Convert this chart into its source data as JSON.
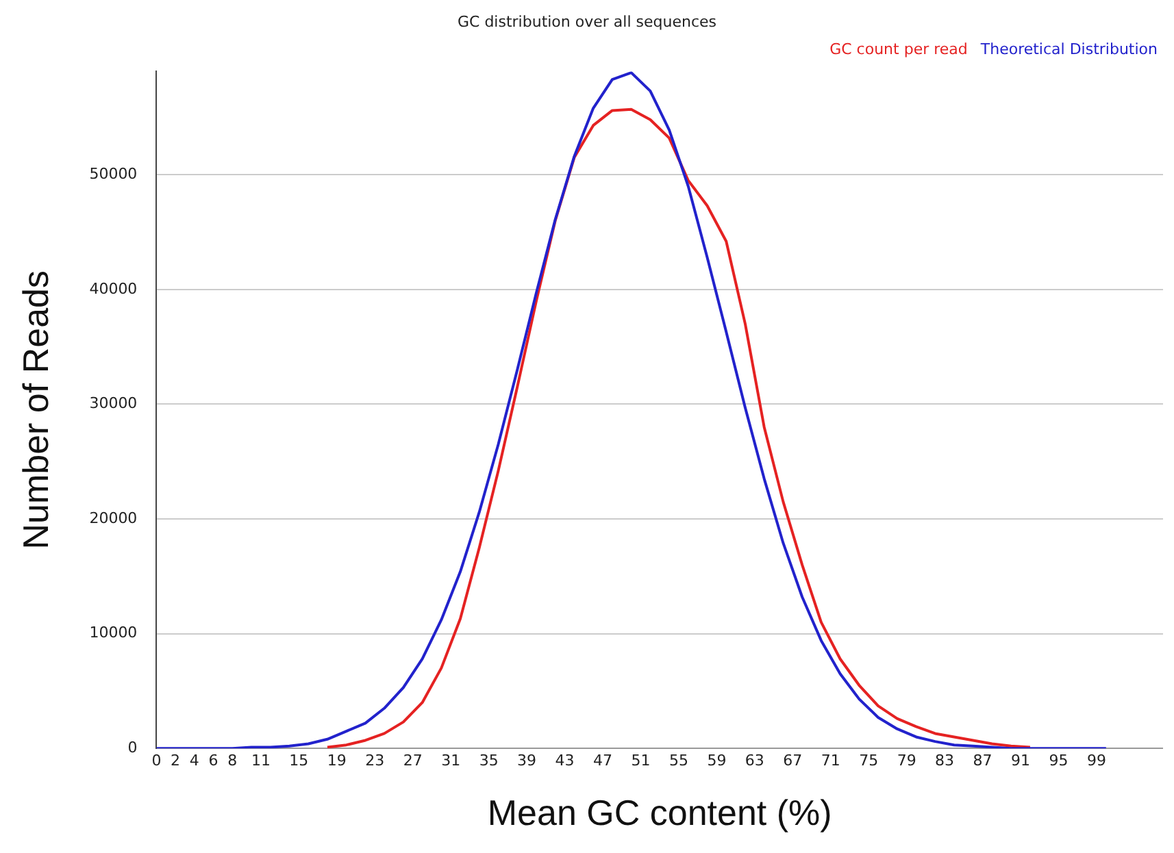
{
  "chart_data": {
    "type": "line",
    "title": "GC distribution over all sequences",
    "xlabel": "Mean GC content (%)",
    "ylabel": "Number of Reads",
    "x": [
      0,
      2,
      4,
      6,
      8,
      10,
      12,
      14,
      16,
      18,
      20,
      22,
      24,
      26,
      28,
      30,
      32,
      34,
      36,
      38,
      40,
      42,
      44,
      46,
      48,
      50,
      52,
      54,
      56,
      58,
      60,
      62,
      64,
      66,
      68,
      70,
      72,
      74,
      76,
      78,
      80,
      82,
      84,
      86,
      88,
      90,
      92,
      94,
      96,
      98,
      100
    ],
    "series": [
      {
        "name": "GC count per read",
        "color": "#e52222",
        "values": [
          null,
          null,
          null,
          null,
          null,
          null,
          null,
          null,
          null,
          100,
          300,
          700,
          1300,
          2300,
          4000,
          7000,
          11300,
          17500,
          24200,
          31500,
          39000,
          46000,
          51500,
          54300,
          55600,
          55700,
          54800,
          53200,
          49500,
          47300,
          44200,
          37000,
          28000,
          21500,
          16000,
          11000,
          7800,
          5500,
          3700,
          2600,
          1900,
          1300,
          1000,
          700,
          400,
          200,
          100,
          null,
          null,
          null,
          null
        ]
      },
      {
        "name": "Theoretical Distribution",
        "color": "#2222cc",
        "values": [
          0,
          0,
          0,
          0,
          0,
          100,
          100,
          200,
          400,
          800,
          1500,
          2200,
          3500,
          5300,
          7800,
          11200,
          15400,
          20600,
          26500,
          33000,
          39700,
          46100,
          51600,
          55800,
          58300,
          58900,
          57300,
          53900,
          49000,
          42800,
          36300,
          29700,
          23500,
          17900,
          13200,
          9400,
          6500,
          4300,
          2700,
          1700,
          1000,
          600,
          300,
          200,
          100,
          0,
          0,
          0,
          0,
          0,
          0
        ]
      }
    ],
    "xlim": [
      0,
      106
    ],
    "xticks": [
      0,
      2,
      4,
      6,
      8,
      11,
      15,
      19,
      23,
      27,
      31,
      35,
      39,
      43,
      47,
      51,
      55,
      59,
      63,
      67,
      71,
      75,
      79,
      83,
      87,
      91,
      95,
      99
    ],
    "ylim": [
      0,
      59000
    ],
    "yticks": [
      0,
      10000,
      20000,
      30000,
      40000,
      50000
    ],
    "grid": "y",
    "legend": "top right",
    "marker": "none",
    "line_style": "solid"
  }
}
